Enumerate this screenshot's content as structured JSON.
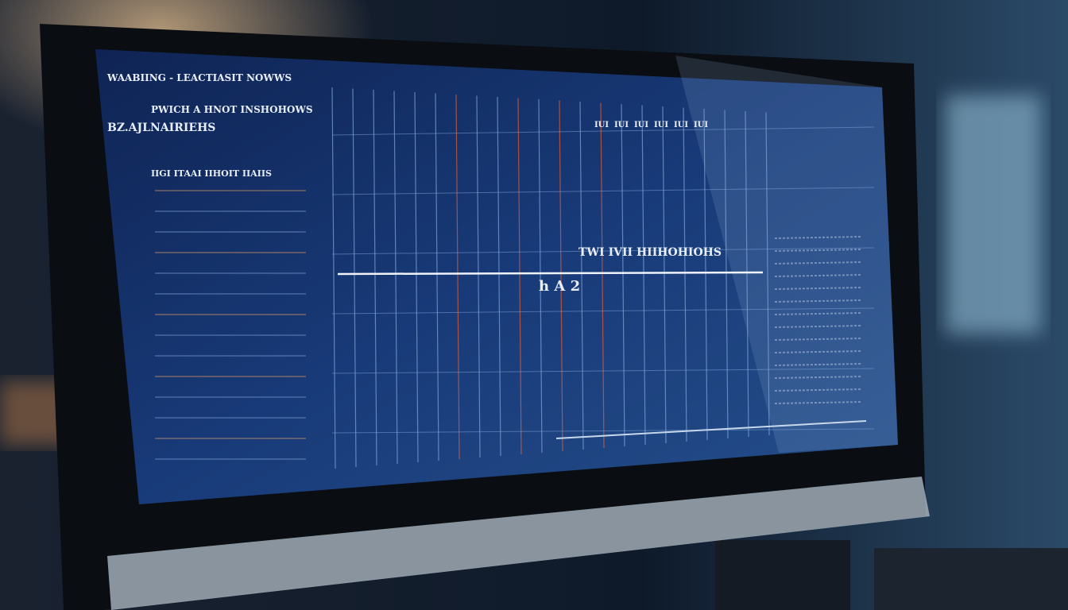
{
  "screen": {
    "header": [
      "WAABIING - LEACTIASIT NOWWS",
      "PWICH A HNOT INSHOHOWS",
      "BZ.AJLNAIRIEHS"
    ],
    "left_panel_title": "IIGI ITAAI IIHOIT IIAIIS",
    "center_label": "TWI IVII HIIHOHIOHS",
    "row_label": "h A 2",
    "columns": [
      "IUI",
      "IUI",
      "IUI",
      "IUI",
      "IUI",
      "IUI"
    ]
  }
}
